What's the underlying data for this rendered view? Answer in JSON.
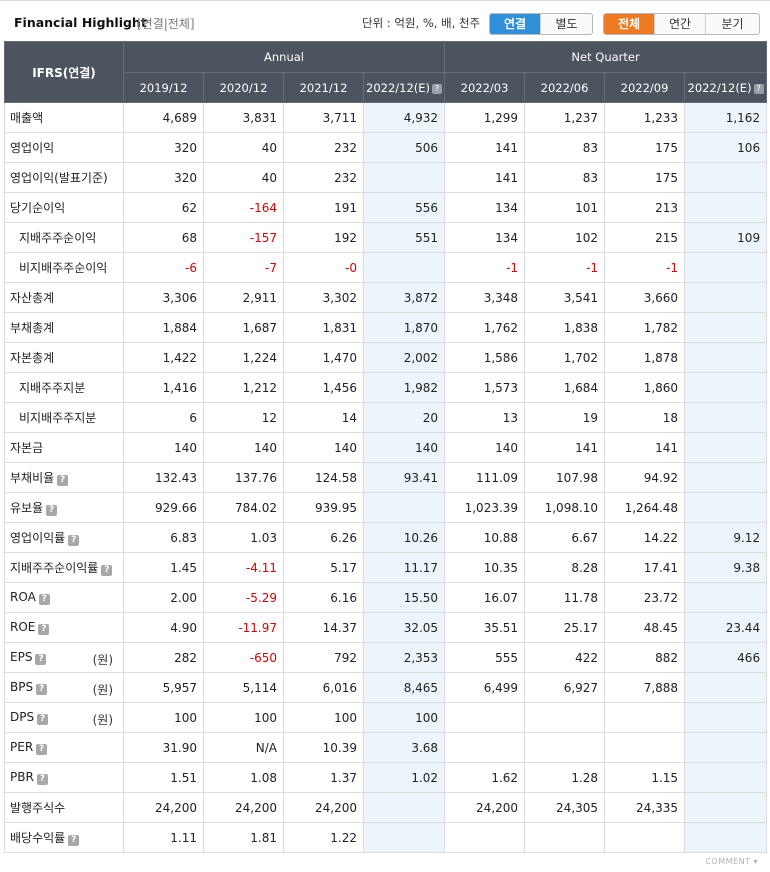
{
  "header": {
    "title": "Financial Highlight",
    "subtitle": "[연결|전체]",
    "unit_text": "단위 : 억원, %, 배, 천주",
    "scope_tabs": [
      "연결",
      "별도"
    ],
    "scope_active": 0,
    "period_tabs": [
      "전체",
      "연간",
      "분기"
    ],
    "period_active": 0,
    "accent_blue": "#2f8fd8",
    "accent_orange": "#f07a22"
  },
  "table": {
    "corner_label": "IFRS(연결)",
    "group_annual": "Annual",
    "group_quarter": "Net Quarter",
    "columns": [
      "2019/12",
      "2020/12",
      "2021/12",
      "2022/12(E)",
      "2022/03",
      "2022/06",
      "2022/09",
      "2022/12(E)"
    ],
    "estimate_columns": [
      3,
      7
    ],
    "rows": [
      {
        "label": "매출액",
        "sub": false,
        "help": false,
        "unit": "",
        "values": [
          "4,689",
          "3,831",
          "3,711",
          "4,932",
          "1,299",
          "1,237",
          "1,233",
          "1,162"
        ]
      },
      {
        "label": "영업이익",
        "sub": false,
        "help": false,
        "unit": "",
        "values": [
          "320",
          "40",
          "232",
          "506",
          "141",
          "83",
          "175",
          "106"
        ]
      },
      {
        "label": "영업이익(발표기준)",
        "sub": false,
        "help": false,
        "unit": "",
        "values": [
          "320",
          "40",
          "232",
          "",
          "141",
          "83",
          "175",
          ""
        ]
      },
      {
        "label": "당기순이익",
        "sub": false,
        "help": false,
        "unit": "",
        "values": [
          "62",
          "-164",
          "191",
          "556",
          "134",
          "101",
          "213",
          ""
        ]
      },
      {
        "label": "지배주주순이익",
        "sub": true,
        "help": false,
        "unit": "",
        "values": [
          "68",
          "-157",
          "192",
          "551",
          "134",
          "102",
          "215",
          "109"
        ]
      },
      {
        "label": "비지배주주순이익",
        "sub": true,
        "help": false,
        "unit": "",
        "values": [
          "-6",
          "-7",
          "-0",
          "",
          "-1",
          "-1",
          "-1",
          ""
        ]
      },
      {
        "label": "자산총계",
        "sub": false,
        "help": false,
        "unit": "",
        "values": [
          "3,306",
          "2,911",
          "3,302",
          "3,872",
          "3,348",
          "3,541",
          "3,660",
          ""
        ]
      },
      {
        "label": "부채총계",
        "sub": false,
        "help": false,
        "unit": "",
        "values": [
          "1,884",
          "1,687",
          "1,831",
          "1,870",
          "1,762",
          "1,838",
          "1,782",
          ""
        ]
      },
      {
        "label": "자본총계",
        "sub": false,
        "help": false,
        "unit": "",
        "values": [
          "1,422",
          "1,224",
          "1,470",
          "2,002",
          "1,586",
          "1,702",
          "1,878",
          ""
        ]
      },
      {
        "label": "지배주주지분",
        "sub": true,
        "help": false,
        "unit": "",
        "values": [
          "1,416",
          "1,212",
          "1,456",
          "1,982",
          "1,573",
          "1,684",
          "1,860",
          ""
        ]
      },
      {
        "label": "비지배주주지분",
        "sub": true,
        "help": false,
        "unit": "",
        "values": [
          "6",
          "12",
          "14",
          "20",
          "13",
          "19",
          "18",
          ""
        ]
      },
      {
        "label": "자본금",
        "sub": false,
        "help": false,
        "unit": "",
        "values": [
          "140",
          "140",
          "140",
          "140",
          "140",
          "141",
          "141",
          ""
        ]
      },
      {
        "label": "부채비율",
        "sub": false,
        "help": true,
        "unit": "",
        "values": [
          "132.43",
          "137.76",
          "124.58",
          "93.41",
          "111.09",
          "107.98",
          "94.92",
          ""
        ]
      },
      {
        "label": "유보율",
        "sub": false,
        "help": true,
        "unit": "",
        "values": [
          "929.66",
          "784.02",
          "939.95",
          "",
          "1,023.39",
          "1,098.10",
          "1,264.48",
          ""
        ]
      },
      {
        "label": "영업이익률",
        "sub": false,
        "help": true,
        "unit": "",
        "values": [
          "6.83",
          "1.03",
          "6.26",
          "10.26",
          "10.88",
          "6.67",
          "14.22",
          "9.12"
        ]
      },
      {
        "label": "지배주주순이익률",
        "sub": false,
        "help": true,
        "unit": "",
        "values": [
          "1.45",
          "-4.11",
          "5.17",
          "11.17",
          "10.35",
          "8.28",
          "17.41",
          "9.38"
        ]
      },
      {
        "label": "ROA",
        "sub": false,
        "help": true,
        "unit": "",
        "values": [
          "2.00",
          "-5.29",
          "6.16",
          "15.50",
          "16.07",
          "11.78",
          "23.72",
          ""
        ]
      },
      {
        "label": "ROE",
        "sub": false,
        "help": true,
        "unit": "",
        "values": [
          "4.90",
          "-11.97",
          "14.37",
          "32.05",
          "35.51",
          "25.17",
          "48.45",
          "23.44"
        ]
      },
      {
        "label": "EPS",
        "sub": false,
        "help": true,
        "unit": "(원)",
        "values": [
          "282",
          "-650",
          "792",
          "2,353",
          "555",
          "422",
          "882",
          "466"
        ]
      },
      {
        "label": "BPS",
        "sub": false,
        "help": true,
        "unit": "(원)",
        "values": [
          "5,957",
          "5,114",
          "6,016",
          "8,465",
          "6,499",
          "6,927",
          "7,888",
          ""
        ]
      },
      {
        "label": "DPS",
        "sub": false,
        "help": true,
        "unit": "(원)",
        "values": [
          "100",
          "100",
          "100",
          "100",
          "",
          "",
          "",
          ""
        ]
      },
      {
        "label": "PER",
        "sub": false,
        "help": true,
        "unit": "",
        "values": [
          "31.90",
          "N/A",
          "10.39",
          "3.68",
          "",
          "",
          "",
          ""
        ]
      },
      {
        "label": "PBR",
        "sub": false,
        "help": true,
        "unit": "",
        "values": [
          "1.51",
          "1.08",
          "1.37",
          "1.02",
          "1.62",
          "1.28",
          "1.15",
          ""
        ]
      },
      {
        "label": "발행주식수",
        "sub": false,
        "help": false,
        "unit": "",
        "values": [
          "24,200",
          "24,200",
          "24,200",
          "",
          "24,200",
          "24,305",
          "24,335",
          ""
        ]
      },
      {
        "label": "배당수익률",
        "sub": false,
        "help": true,
        "unit": "",
        "values": [
          "1.11",
          "1.81",
          "1.22",
          "",
          "",
          "",
          "",
          ""
        ]
      }
    ]
  },
  "footer": {
    "comment_label": "COMMENT ▾"
  }
}
